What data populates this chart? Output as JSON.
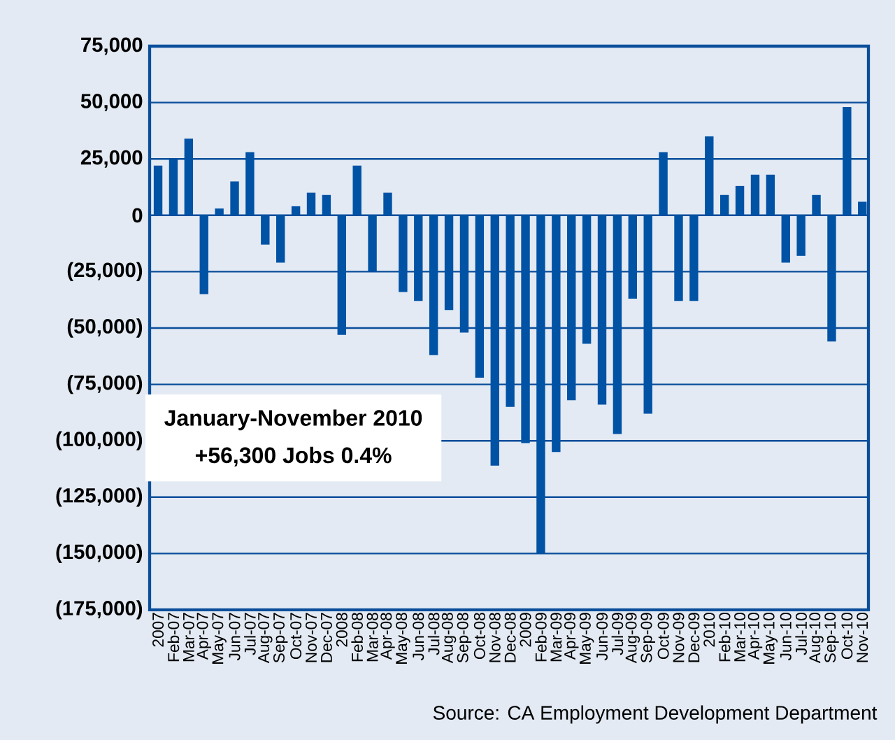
{
  "chart_data": {
    "type": "bar",
    "color": "#0052a5",
    "categories": [
      "2007",
      "Feb-07",
      "Mar-07",
      "Apr-07",
      "May-07",
      "Jun-07",
      "Jul-07",
      "Aug-07",
      "Sep-07",
      "Oct-07",
      "Nov-07",
      "Dec-07",
      "2008",
      "Feb-08",
      "Mar-08",
      "Apr-08",
      "May-08",
      "Jun-08",
      "Jul-08",
      "Aug-08",
      "Sep-08",
      "Oct-08",
      "Nov-08",
      "Dec-08",
      "2009",
      "Feb-09",
      "Mar-09",
      "Apr-09",
      "May-09",
      "Jun-09",
      "Jul-09",
      "Aug-09",
      "Sep-09",
      "Oct-09",
      "Nov-09",
      "Dec-09",
      "2010",
      "Feb-10",
      "Mar-10",
      "Apr-10",
      "May-10",
      "Jun-10",
      "Jul-10",
      "Aug-10",
      "Sep-10",
      "Oct-10",
      "Nov-10"
    ],
    "values": [
      22000,
      25000,
      34000,
      -35000,
      3000,
      15000,
      28000,
      -13000,
      -21000,
      4000,
      10000,
      9000,
      -53000,
      22000,
      -25000,
      10000,
      -34000,
      -38000,
      -62000,
      -42000,
      -52000,
      -72000,
      -111000,
      -85000,
      -101000,
      -150000,
      -105000,
      -82000,
      -57000,
      -84000,
      -97000,
      -37000,
      -88000,
      28000,
      -38000,
      -38000,
      35000,
      9000,
      13000,
      18000,
      18000,
      -21000,
      -18000,
      9000,
      -56000,
      48000,
      6000
    ],
    "ylim": [
      -175000,
      75000
    ],
    "yticks": [
      {
        "value": 75000,
        "label": "75,000"
      },
      {
        "value": 50000,
        "label": "50,000"
      },
      {
        "value": 25000,
        "label": "25,000"
      },
      0,
      {
        "value": -25000,
        "label": "(25,000)"
      },
      {
        "value": -50000,
        "label": "(50,000)"
      },
      {
        "value": -75000,
        "label": "(75,000)"
      },
      {
        "value": -100000,
        "label": "(100,000)"
      },
      {
        "value": -125000,
        "label": "(125,000)"
      },
      {
        "value": -150000,
        "label": "(150,000)"
      },
      {
        "value": -175000,
        "label": "(175,000)"
      }
    ],
    "grid": "y",
    "annotations": [
      "January-November 2010",
      "+56,300 Jobs  0.4%",
      "Source:  CA Employment Development Department"
    ]
  }
}
